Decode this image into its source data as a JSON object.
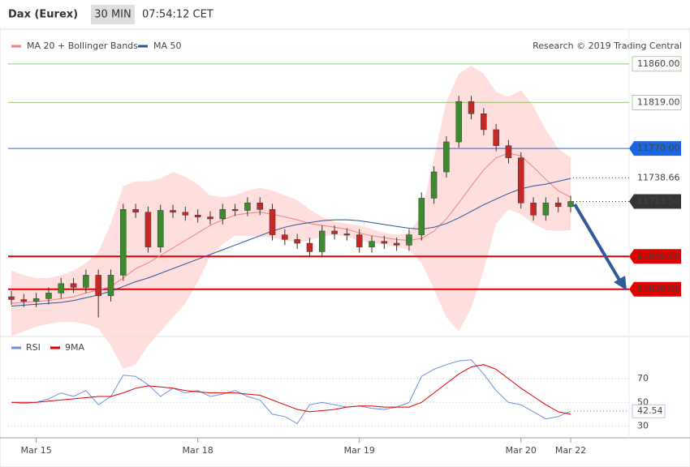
{
  "chart_data": {
    "type": "candlestick",
    "title": "Dax (Eurex)",
    "timeframe": "30 MIN",
    "time": "07:54:12 CET",
    "credit": "Research © 2019 Trading Central",
    "categories": [
      null,
      null,
      "Mar 15",
      null,
      null,
      null,
      null,
      null,
      null,
      null,
      null,
      null,
      null,
      null,
      null,
      "Mar 18",
      null,
      null,
      null,
      null,
      null,
      null,
      null,
      null,
      null,
      null,
      null,
      null,
      "Mar 19",
      null,
      null,
      null,
      null,
      null,
      null,
      null,
      null,
      null,
      null,
      null,
      null,
      "Mar 20",
      null,
      null,
      null,
      "Mar 22"
    ],
    "open": [
      11612,
      11609,
      11607,
      11610,
      11616,
      11626,
      11622,
      11635,
      11613,
      11635,
      11705,
      11702,
      11665,
      11704,
      11702,
      11699,
      11697,
      11695,
      11705,
      11704,
      11712,
      11705,
      11678,
      11673,
      11669,
      11660,
      11682,
      11679,
      11678,
      11665,
      11671,
      11669,
      11667,
      11678,
      11717,
      11745,
      11777,
      11820,
      11807,
      11790,
      11773,
      11760,
      11712,
      11699,
      11712,
      11708
    ],
    "high": [
      11618,
      11615,
      11616,
      11622,
      11632,
      11632,
      11641,
      11641,
      11641,
      11711,
      11711,
      11708,
      11710,
      11710,
      11708,
      11705,
      11703,
      11711,
      11711,
      11718,
      11718,
      11711,
      11684,
      11679,
      11675,
      11688,
      11688,
      11685,
      11684,
      11677,
      11677,
      11675,
      11684,
      11723,
      11751,
      11783,
      11826,
      11826,
      11813,
      11796,
      11779,
      11766,
      11718,
      11718,
      11718,
      11719.5
    ],
    "low": [
      11603,
      11601,
      11601,
      11604,
      11610,
      11616,
      11616,
      11590,
      11607,
      11629,
      11696,
      11659,
      11659,
      11696,
      11693,
      11691,
      11689,
      11689,
      11698,
      11698,
      11699,
      11672,
      11667,
      11663,
      11654,
      11654,
      11673,
      11672,
      11659,
      11659,
      11663,
      11661,
      11661,
      11672,
      11711,
      11739,
      11771,
      11801,
      11784,
      11767,
      11754,
      11706,
      11693,
      11693,
      11702,
      11702
    ],
    "close": [
      11609,
      11607,
      11610,
      11616,
      11626,
      11622,
      11635,
      11613,
      11635,
      11705,
      11702,
      11665,
      11704,
      11702,
      11699,
      11697,
      11695,
      11705,
      11704,
      11712,
      11705,
      11678,
      11673,
      11669,
      11660,
      11682,
      11679,
      11678,
      11665,
      11671,
      11669,
      11667,
      11678,
      11717,
      11745,
      11777,
      11820,
      11807,
      11790,
      11773,
      11760,
      11712,
      11699,
      11712,
      11708,
      11713.5
    ],
    "up_color": "#3d8b2f",
    "down_color": "#c62828",
    "overlays": [
      {
        "name": "MA 20 + Bollinger Bands",
        "color": "#f08080",
        "band_color": "#ffd6d6",
        "values": [
          11605,
          11606,
          11607,
          11608,
          11610,
          11612,
          11616,
          11619,
          11623,
          11632,
          11642,
          11648,
          11656,
          11664,
          11672,
          11680,
          11688,
          11694,
          11699,
          11701,
          11702,
          11700,
          11697,
          11694,
          11690,
          11688,
          11686,
          11684,
          11680,
          11677,
          11675,
          11673,
          11672,
          11674,
          11682,
          11695,
          11712,
          11730,
          11747,
          11760,
          11765,
          11762,
          11750,
          11737,
          11725,
          11718
        ],
        "upper": [
          11640,
          11635,
          11632,
          11632,
          11635,
          11640,
          11648,
          11660,
          11690,
          11730,
          11735,
          11735,
          11738,
          11745,
          11740,
          11732,
          11720,
          11718,
          11720,
          11725,
          11728,
          11725,
          11720,
          11715,
          11705,
          11697,
          11692,
          11690,
          11688,
          11684,
          11680,
          11678,
          11680,
          11700,
          11760,
          11820,
          11850,
          11858,
          11850,
          11830,
          11825,
          11832,
          11815,
          11790,
          11770,
          11760
        ],
        "lower": [
          11570,
          11575,
          11580,
          11583,
          11585,
          11585,
          11583,
          11578,
          11560,
          11535,
          11540,
          11560,
          11575,
          11590,
          11605,
          11628,
          11655,
          11668,
          11677,
          11677,
          11676,
          11675,
          11672,
          11670,
          11672,
          11676,
          11678,
          11676,
          11672,
          11669,
          11668,
          11665,
          11662,
          11648,
          11620,
          11590,
          11575,
          11600,
          11640,
          11690,
          11705,
          11700,
          11690,
          11683,
          11682,
          11683
        ]
      },
      {
        "name": "MA 50",
        "color": "#2a5599",
        "values": [
          11602,
          11603,
          11604,
          11605,
          11606,
          11608,
          11611,
          11614,
          11618,
          11623,
          11628,
          11632,
          11637,
          11642,
          11647,
          11652,
          11657,
          11662,
          11667,
          11672,
          11677,
          11682,
          11686,
          11689,
          11691,
          11693,
          11694,
          11694,
          11693,
          11691,
          11689,
          11687,
          11685,
          11684,
          11686,
          11690,
          11696,
          11703,
          11710,
          11716,
          11722,
          11727,
          11730,
          11732,
          11735,
          11738
        ]
      }
    ],
    "ylim": [
      11574,
      11872
    ],
    "levels": [
      {
        "value": 11860,
        "label": "11860.00",
        "color": "#5aa02c",
        "style": "solid",
        "label_style": "outline"
      },
      {
        "value": 11819,
        "label": "11819.00",
        "color": "#5aa02c",
        "style": "solid",
        "label_style": "outline"
      },
      {
        "value": 11770,
        "label": "11770.00",
        "color": "#1a66e0",
        "style": "solid",
        "label_style": "filled"
      },
      {
        "value": 11738.66,
        "label": "11738.66",
        "color": "#555555",
        "style": "dotted",
        "label_style": "plain"
      },
      {
        "value": 11713.5,
        "label": "11713.50",
        "color": "#333333",
        "style": "dotted",
        "label_style": "filled"
      },
      {
        "value": 11655,
        "label": "11655.00",
        "color": "#e00000",
        "style": "solid",
        "label_style": "filled"
      },
      {
        "value": 11620,
        "label": "11620.00",
        "color": "#e00000",
        "style": "solid",
        "label_style": "filled"
      }
    ],
    "rsi": {
      "series": [
        {
          "name": "RSI",
          "color": "#6f8fdc",
          "values": [
            50,
            49,
            50,
            53,
            58,
            55,
            60,
            48,
            55,
            73,
            72,
            65,
            55,
            62,
            58,
            60,
            55,
            57,
            60,
            55,
            52,
            40,
            38,
            32,
            48,
            50,
            48,
            46,
            47,
            45,
            44,
            46,
            50,
            72,
            78,
            82,
            85,
            86,
            74,
            60,
            50,
            48,
            42,
            36,
            38,
            42.54
          ]
        },
        {
          "name": "9MA",
          "color": "#e00000",
          "values": [
            50,
            50,
            50,
            51,
            52,
            53,
            54,
            55,
            55,
            58,
            62,
            64,
            63,
            62,
            60,
            59,
            58,
            58,
            58,
            57,
            56,
            52,
            48,
            44,
            42,
            43,
            44,
            46,
            47,
            47,
            46,
            46,
            46,
            50,
            58,
            66,
            74,
            80,
            82,
            78,
            70,
            62,
            55,
            48,
            42,
            40
          ]
        }
      ],
      "ylim": [
        20,
        90
      ],
      "yticks": [
        30,
        50,
        70
      ],
      "grid": true
    }
  }
}
